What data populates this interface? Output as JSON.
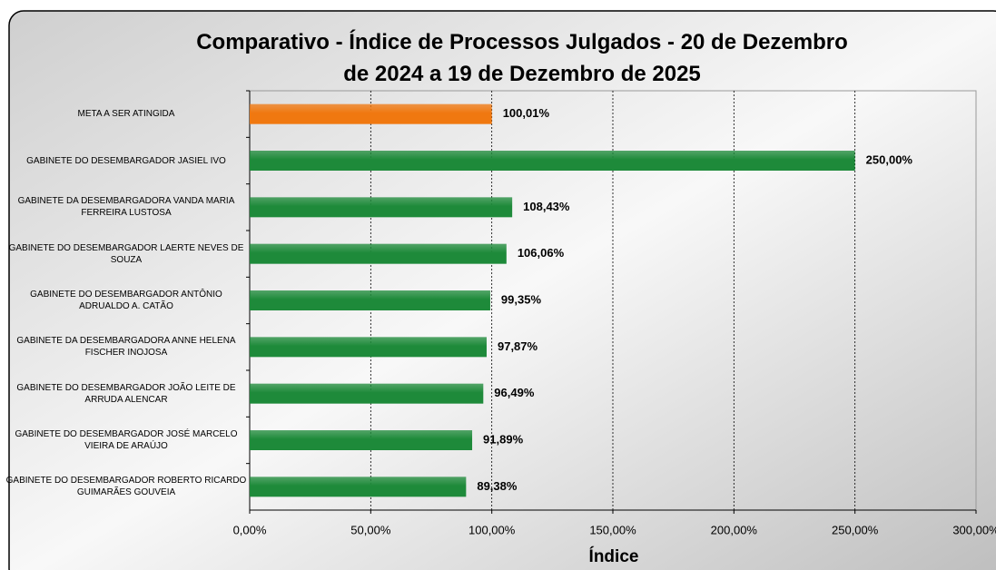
{
  "chart_data": {
    "type": "bar",
    "orientation": "horizontal",
    "title": "Comparativo - Índice de Processos Julgados - 20 de Dezembro de 2024 a 19 de Dezembro de 2025",
    "x_label": "Índice",
    "categories": [
      "META A SER ATINGIDA",
      "GABINETE DO DESEMBARGADOR JASIEL IVO",
      "GABINETE DA DESEMBARGADORA VANDA MARIA FERREIRA LUSTOSA",
      "GABINETE DO DESEMBARGADOR LAERTE NEVES DE SOUZA",
      "GABINETE DO DESEMBARGADOR ANTÔNIO ADRUALDO A. CATÃO",
      "GABINETE DA DESEMBARGADORA ANNE HELENA FISCHER INOJOSA",
      "GABINETE DO DESEMBARGADOR JOÃO LEITE DE ARRUDA ALENCAR",
      "GABINETE DO DESEMBARGADOR JOSÉ MARCELO VIEIRA DE ARAÚJO",
      "GABINETE DO DESEMBARGADOR ROBERTO RICARDO GUIMARÃES GOUVEIA"
    ],
    "values": [
      100.01,
      250,
      108.43,
      106.06,
      99.35,
      97.87,
      96.49,
      91.89,
      89.38
    ],
    "value_labels": [
      "100,01%",
      "250,00%",
      "108,43%",
      "106,06%",
      "99,35%",
      "97,87%",
      "96,49%",
      "91,89%",
      "89,38%"
    ],
    "colors": [
      "#f07810",
      "#1e8a3a",
      "#1e8a3a",
      "#1e8a3a",
      "#1e8a3a",
      "#1e8a3a",
      "#1e8a3a",
      "#1e8a3a",
      "#1e8a3a"
    ],
    "xlim": [
      0,
      300
    ],
    "xticks": [
      {
        "value": 0,
        "label": "0,00%"
      },
      {
        "value": 50,
        "label": "50,00%"
      },
      {
        "value": 100,
        "label": "100,00%"
      },
      {
        "value": 150,
        "label": "150,00%"
      },
      {
        "value": 200,
        "label": "200,00%"
      },
      {
        "value": 250,
        "label": "250,00%"
      },
      {
        "value": 300,
        "label": "300,00%"
      }
    ],
    "grid": true
  }
}
